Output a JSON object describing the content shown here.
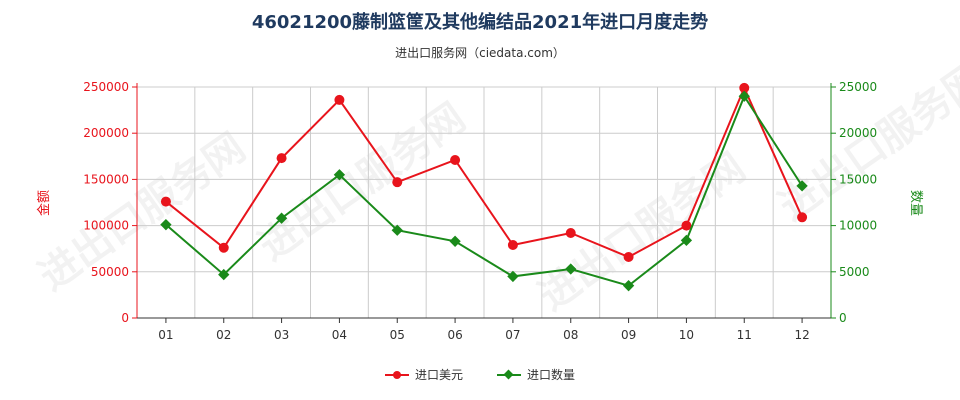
{
  "header": {
    "title": "46021200藤制篮筐及其他编结品2021年进口月度走势",
    "subtitle": "进出口服务网（ciedata.com）"
  },
  "watermark": "进出口服务网",
  "colors": {
    "amount": "#e8141c",
    "quantity": "#1a8a1a",
    "grid": "#cccccc",
    "axis": "#333333"
  },
  "chart_data": {
    "type": "line",
    "categories": [
      "01",
      "02",
      "03",
      "04",
      "05",
      "06",
      "07",
      "08",
      "09",
      "10",
      "11",
      "12"
    ],
    "y_left": {
      "label": "金额",
      "ylim": [
        0,
        250000
      ],
      "ticks": [
        0,
        50000,
        100000,
        150000,
        200000,
        250000
      ]
    },
    "y_right": {
      "label": "数量",
      "ylim": [
        0,
        25000
      ],
      "ticks": [
        0,
        5000,
        10000,
        15000,
        20000,
        25000
      ]
    },
    "series": [
      {
        "name": "进口美元",
        "axis": "left",
        "color": "#e8141c",
        "marker": "circle",
        "values": [
          126000,
          76000,
          173000,
          236000,
          147000,
          171000,
          79000,
          92000,
          66000,
          100000,
          249000,
          109000
        ]
      },
      {
        "name": "进口数量",
        "axis": "right",
        "color": "#1a8a1a",
        "marker": "diamond",
        "values": [
          10100,
          4700,
          10800,
          15500,
          9500,
          8300,
          4500,
          5300,
          3500,
          8400,
          24000,
          14300
        ]
      }
    ],
    "grid": true,
    "legend": "bottom-center"
  }
}
